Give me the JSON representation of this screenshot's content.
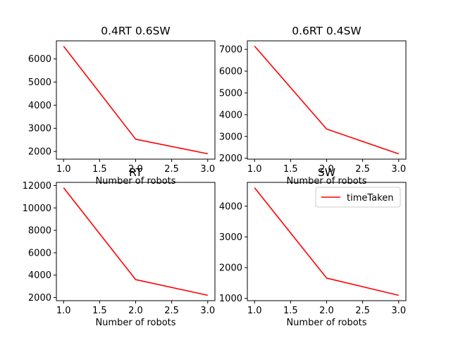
{
  "chart_data": [
    {
      "type": "line",
      "title": "0.4RT 0.6SW",
      "xlabel": "Number of robots",
      "ylabel": "",
      "x": [
        1,
        2,
        3
      ],
      "series": [
        {
          "values": [
            6550,
            2530,
            1900
          ],
          "color": "#ff0000"
        }
      ],
      "xlim": [
        0.9,
        3.1
      ],
      "ylim": [
        1668,
        6782
      ],
      "xticks": [
        1.0,
        1.5,
        2.0,
        2.5,
        3.0
      ],
      "xtick_labels": [
        "1.0",
        "1.5",
        "2.0",
        "2.5",
        "3.0"
      ],
      "yticks": [
        2000,
        3000,
        4000,
        5000,
        6000
      ],
      "ytick_labels": [
        "2000",
        "3000",
        "4000",
        "5000",
        "6000"
      ],
      "grid": false,
      "legend": null
    },
    {
      "type": "line",
      "title": "0.6RT 0.4SW",
      "xlabel": "Number of robots",
      "ylabel": "",
      "x": [
        1,
        2,
        3
      ],
      "series": [
        {
          "values": [
            7150,
            3340,
            2200
          ],
          "color": "#ff0000"
        }
      ],
      "xlim": [
        0.9,
        3.1
      ],
      "ylim": [
        1958,
        7392
      ],
      "xticks": [
        1.0,
        1.5,
        2.0,
        2.5,
        3.0
      ],
      "xtick_labels": [
        "1.0",
        "1.5",
        "2.0",
        "2.5",
        "3.0"
      ],
      "yticks": [
        2000,
        3000,
        4000,
        5000,
        6000,
        7000
      ],
      "ytick_labels": [
        "2000",
        "3000",
        "4000",
        "5000",
        "6000",
        "7000"
      ],
      "grid": false,
      "legend": null
    },
    {
      "type": "line",
      "title": "RT",
      "xlabel": "Number of robots",
      "ylabel": "",
      "x": [
        1,
        2,
        3
      ],
      "series": [
        {
          "values": [
            11800,
            3600,
            2200
          ],
          "color": "#ff0000"
        }
      ],
      "xlim": [
        0.9,
        3.1
      ],
      "ylim": [
        1720,
        12280
      ],
      "xticks": [
        1.0,
        1.5,
        2.0,
        2.5,
        3.0
      ],
      "xtick_labels": [
        "1.0",
        "1.5",
        "2.0",
        "2.5",
        "3.0"
      ],
      "yticks": [
        2000,
        4000,
        6000,
        8000,
        10000,
        12000
      ],
      "ytick_labels": [
        "2000",
        "4000",
        "6000",
        "8000",
        "10000",
        "12000"
      ],
      "grid": false,
      "legend": null
    },
    {
      "type": "line",
      "title": "SW",
      "xlabel": "Number of robots",
      "ylabel": "",
      "x": [
        1,
        2,
        3
      ],
      "series": [
        {
          "name": "timeTaken",
          "values": [
            4600,
            1660,
            1100
          ],
          "color": "#ff0000"
        }
      ],
      "xlim": [
        0.9,
        3.1
      ],
      "ylim": [
        925,
        4775
      ],
      "xticks": [
        1.0,
        1.5,
        2.0,
        2.5,
        3.0
      ],
      "xtick_labels": [
        "1.0",
        "1.5",
        "2.0",
        "2.5",
        "3.0"
      ],
      "yticks": [
        1000,
        2000,
        3000,
        4000
      ],
      "ytick_labels": [
        "1000",
        "2000",
        "3000",
        "4000"
      ],
      "grid": false,
      "legend": "upper right"
    }
  ]
}
